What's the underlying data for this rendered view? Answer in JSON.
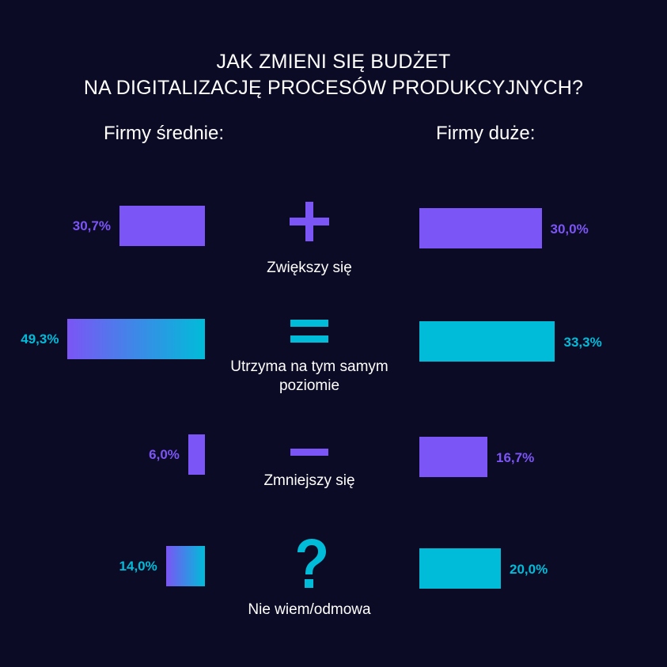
{
  "title_lines": [
    "JAK ZMIENI SIĘ BUDŻET",
    "NA DIGITALIZACJĘ PROCESÓW PRODUKCYJNYCH?"
  ],
  "colors": {
    "background": "#0c0b26",
    "purple": "#7b55f5",
    "cyan": "#00bcd9"
  },
  "chart_data": {
    "type": "bar",
    "title": "JAK ZMIENI SIĘ BUDŻET NA DIGITALIZACJĘ PROCESÓW PRODUKCYJNYCH?",
    "categories": [
      "Zwiększy się",
      "Utrzyma na tym samym poziomie",
      "Zmniejszy się",
      "Nie wiem/odmowa"
    ],
    "category_labels": [
      [
        "Zwiększy się"
      ],
      [
        "Utrzyma na tym samym",
        "poziomie"
      ],
      [
        "Zmniejszy się"
      ],
      [
        "Nie wiem/odmowa"
      ]
    ],
    "category_icons": [
      "plus-icon",
      "equals-icon",
      "minus-icon",
      "question-icon"
    ],
    "series": [
      {
        "name": "Firmy średnie:",
        "values": [
          30.7,
          49.3,
          6.0,
          14.0
        ],
        "labels": [
          "30,7%",
          "49,3%",
          "6,0%",
          "14,0%"
        ],
        "fills": [
          "purple",
          "gradient",
          "purple",
          "gradient"
        ],
        "label_colors": [
          "purple",
          "cyan",
          "purple",
          "cyan"
        ]
      },
      {
        "name": "Firmy duże:",
        "values": [
          30.0,
          33.3,
          16.7,
          20.0
        ],
        "labels": [
          "30,0%",
          "33,3%",
          "16,7%",
          "20,0%"
        ],
        "fills": [
          "purple",
          "cyan",
          "purple",
          "cyan"
        ],
        "label_colors": [
          "purple",
          "cyan",
          "purple",
          "cyan"
        ]
      }
    ],
    "unit": "%",
    "legend": "column headers above each side"
  }
}
